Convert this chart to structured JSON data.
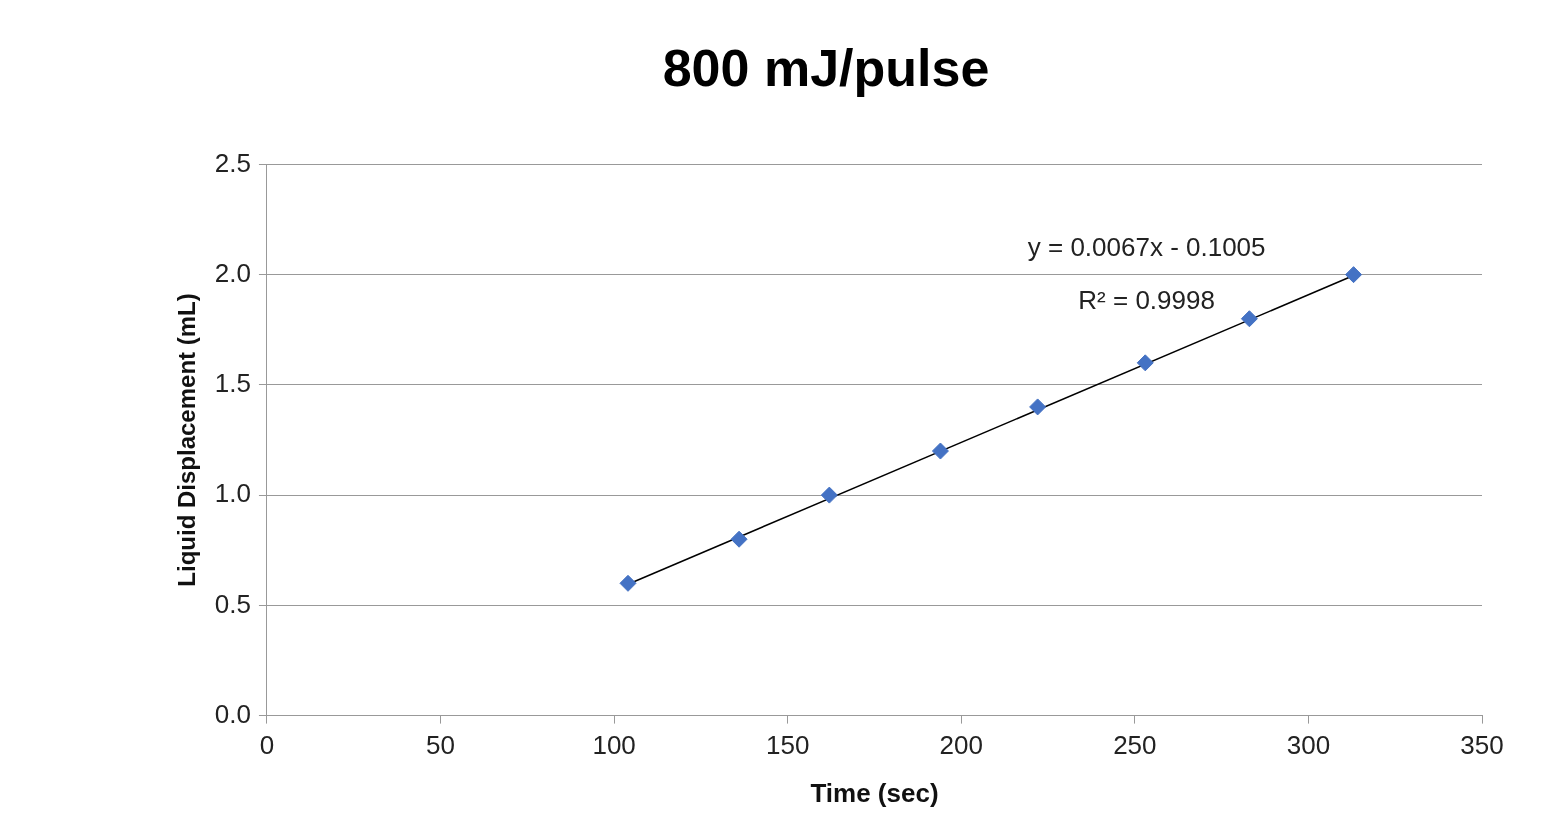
{
  "chart_data": {
    "type": "scatter",
    "title": "800 mJ/pulse",
    "xlabel": "Time (sec)",
    "ylabel": "Liquid Displacement (mL)",
    "series": [
      {
        "type": "scatter",
        "color": "#4472c4",
        "x": [
          104,
          136,
          162,
          194,
          222,
          253,
          283,
          313
        ],
        "values": [
          0.6,
          0.8,
          1.0,
          1.2,
          1.4,
          1.6,
          1.8,
          2.0
        ]
      },
      {
        "type": "line",
        "color": "#000000",
        "x": [
          104,
          313
        ],
        "values": [
          0.596,
          1.996
        ],
        "marker": "none"
      }
    ],
    "xlim": [
      0,
      350
    ],
    "xticks": [
      0,
      50,
      100,
      150,
      200,
      250,
      300,
      350
    ],
    "ylim": [
      0,
      2.5
    ],
    "yticks": [
      {
        "value": 0,
        "label": "0.0"
      },
      {
        "value": 0.5,
        "label": "0.5"
      },
      {
        "value": 1,
        "label": "1.0"
      },
      {
        "value": 1.5,
        "label": "1.5"
      },
      {
        "value": 2,
        "label": "2.0"
      },
      {
        "value": 2.5,
        "label": "2.5"
      }
    ],
    "annotations": [
      "y = 0.0067x - 0.1005",
      "R² = 0.9998"
    ],
    "grid": "y",
    "legend": false,
    "marker": "diamond",
    "line_style": "solid"
  }
}
